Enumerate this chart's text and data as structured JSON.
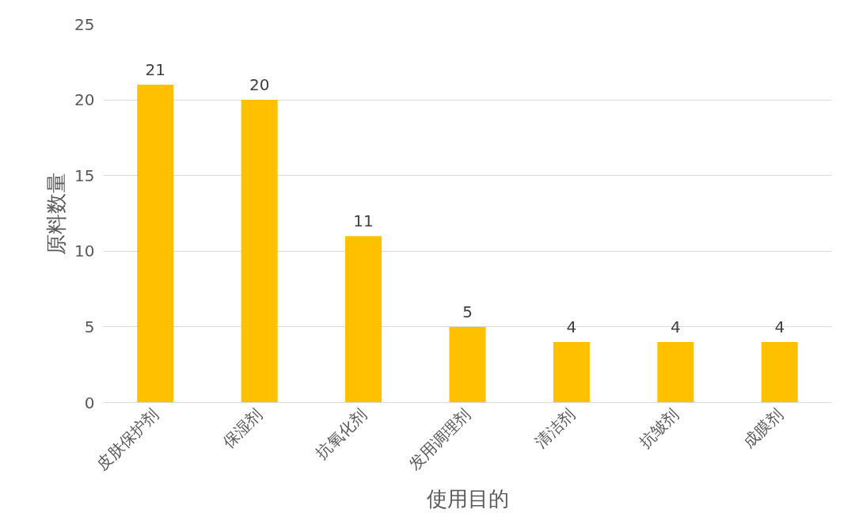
{
  "chart_data": {
    "type": "bar",
    "xlabel": "使用目的",
    "ylabel": "原料数量",
    "categories": [
      "皮肤保护剂",
      "保湿剂",
      "抗氧化剂",
      "发用调理剂",
      "清洁剂",
      "抗皱剂",
      "成膜剂"
    ],
    "values": [
      21,
      20,
      11,
      5,
      4,
      4,
      4
    ],
    "color": "#ffc000",
    "ylim": [
      0,
      25
    ],
    "yticks": [
      0,
      5,
      10,
      15,
      20,
      25
    ],
    "grid": "y",
    "data_labels": true
  }
}
